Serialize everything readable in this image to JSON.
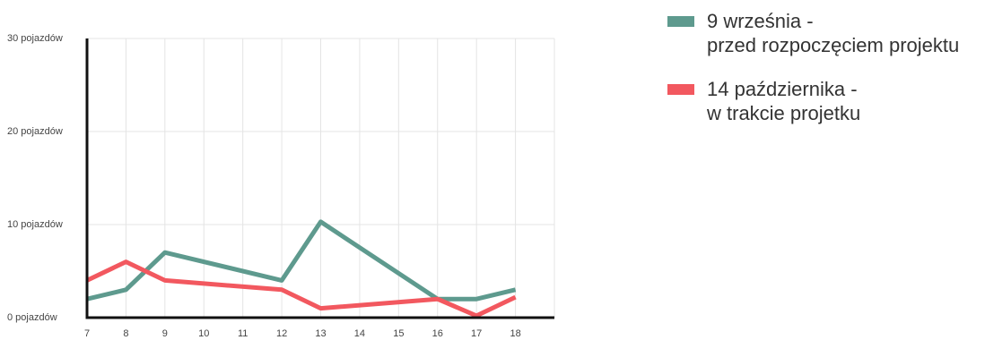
{
  "chart_data": {
    "type": "line",
    "x": [
      7,
      8,
      9,
      10,
      11,
      12,
      13,
      14,
      15,
      16,
      17,
      18
    ],
    "x_tick_labels": [
      "7",
      "8",
      "9",
      "10",
      "11",
      "12",
      "13",
      "14",
      "15",
      "16",
      "17",
      "18"
    ],
    "y_tick_labels": [
      "0 pojazdów",
      "10 pojazdów",
      "20 pojazdów",
      "30 pojazdów"
    ],
    "y_ticks": [
      0,
      10,
      20,
      30
    ],
    "ylim": [
      0,
      30
    ],
    "xlim": [
      7,
      19
    ],
    "grid": true,
    "legend_position": "right",
    "series": [
      {
        "name_line1": "9 września -",
        "name_line2": "przed rozpoczęciem projektu",
        "color": "#5e9a8e",
        "x": [
          7,
          8,
          9,
          12,
          13,
          16,
          17,
          18
        ],
        "values": [
          2,
          3,
          7,
          4,
          10.3,
          2,
          2,
          3
        ]
      },
      {
        "name_line1": "14 października -",
        "name_line2": "w trakcie projetku",
        "color": "#f2585f",
        "x": [
          7,
          8,
          9,
          12,
          13,
          16,
          17,
          18
        ],
        "values": [
          4,
          6,
          4,
          3,
          1,
          2,
          0.2,
          2.2
        ]
      }
    ]
  }
}
